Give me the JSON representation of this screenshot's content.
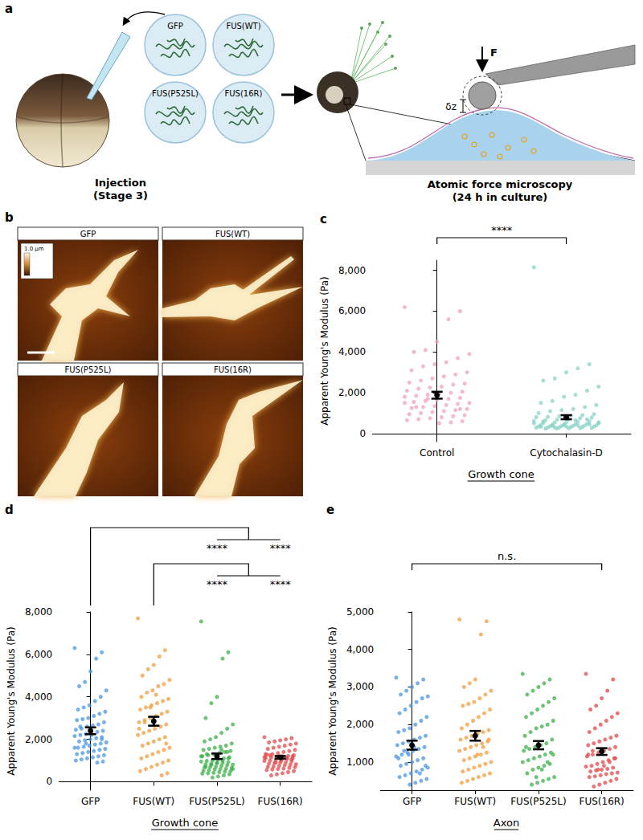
{
  "panel_labels": [
    "a",
    "b",
    "c",
    "d",
    "e"
  ],
  "diagram": {
    "constructs": [
      "GFP",
      "FUS(WT)",
      "FUS(P525L)",
      "FUS(16R)"
    ],
    "force": "F",
    "indentation": "δz",
    "steps": [
      {
        "title": "Injection",
        "subtitle": "(Stage 3)"
      },
      {
        "title": "Atomic force microscopy",
        "subtitle": "(24 h in culture)"
      }
    ]
  },
  "images": {
    "titles": [
      "GFP",
      "FUS(WT)",
      "FUS(P525L)",
      "FUS(16R)"
    ],
    "color_scale_label": "1.0 µm"
  },
  "chart_data": [
    {
      "type": "strip",
      "y_label": "Apparent Young's Modulus (Pa)",
      "x_label": "Growth cone",
      "categories": [
        "Control",
        "Cytochalasin-D"
      ],
      "colors": [
        "#f2a2bd",
        "#87d3c6"
      ],
      "values": [
        [
          6200,
          6000,
          5600,
          4500,
          4100,
          4000,
          3900,
          3700,
          3500,
          3400,
          3300,
          3100,
          3000,
          2900,
          2800,
          2700,
          2600,
          2500,
          2450,
          2400,
          2300,
          2250,
          2200,
          2100,
          2050,
          2000,
          1950,
          1900,
          1850,
          1800,
          1750,
          1700,
          1650,
          1600,
          1550,
          1500,
          1450,
          1400,
          1350,
          1300,
          1250,
          1200,
          1150,
          1100,
          1050,
          1000,
          950,
          900,
          850,
          800,
          750,
          700,
          650,
          600,
          550,
          500,
          1700,
          1300,
          1500,
          1200
        ],
        [
          8150,
          3400,
          3200,
          3000,
          2700,
          2600,
          2300,
          2100,
          1900,
          1800,
          1600,
          1500,
          1400,
          1300,
          1200,
          1150,
          1100,
          1000,
          950,
          900,
          880,
          850,
          820,
          800,
          780,
          750,
          700,
          680,
          650,
          620,
          600,
          580,
          560,
          540,
          520,
          500,
          480,
          460,
          450,
          440,
          420,
          400,
          390,
          380,
          370,
          360,
          350,
          340,
          330,
          320,
          310,
          300,
          290,
          280,
          270,
          260,
          250,
          240,
          500,
          450,
          400,
          350,
          300,
          600,
          550,
          700,
          650,
          420,
          380,
          330
        ]
      ],
      "means": [
        1880,
        800
      ],
      "errors": [
        170,
        100
      ],
      "ylim": [
        -400,
        8500
      ],
      "yticks": [
        0,
        2000,
        4000,
        6000,
        8000
      ],
      "grid": false,
      "significance": [
        {
          "from": "Control",
          "to": [
            "Cytochalasin-D"
          ],
          "label": "****"
        }
      ]
    },
    {
      "type": "strip",
      "y_label": "Apparent Young's Modulus (Pa)",
      "x_label": "Growth cone",
      "categories": [
        "GFP",
        "FUS(WT)",
        "FUS(P525L)",
        "FUS(16R)"
      ],
      "colors": [
        "#4b95e0",
        "#f39c3c",
        "#3cb04a",
        "#e34a4a"
      ],
      "values": [
        [
          6300,
          6100,
          5800,
          5200,
          4700,
          4500,
          4300,
          4000,
          3800,
          3600,
          3500,
          3400,
          3300,
          3200,
          3100,
          3000,
          2950,
          2900,
          2800,
          2700,
          2650,
          2600,
          2500,
          2450,
          2400,
          2350,
          2300,
          2250,
          2200,
          2150,
          2100,
          2050,
          2000,
          1950,
          1900,
          1850,
          1800,
          1750,
          1700,
          1650,
          1600,
          1550,
          1500,
          1450,
          1400,
          1350,
          1300,
          1250,
          1200,
          1150,
          1100,
          1050,
          1000,
          950,
          900,
          2200,
          1800,
          2600,
          1600,
          2000
        ],
        [
          7700,
          6200,
          5900,
          5500,
          5300,
          5000,
          4800,
          4600,
          4500,
          4300,
          4200,
          4000,
          3900,
          3800,
          3700,
          3600,
          3500,
          3400,
          3300,
          3200,
          3100,
          3000,
          2900,
          2800,
          2700,
          2600,
          2500,
          2400,
          2300,
          2200,
          2100,
          2000,
          1900,
          1800,
          1700,
          1600,
          1500,
          1400,
          1300,
          1200,
          1100,
          1000,
          900,
          800,
          700,
          600,
          500,
          400,
          300,
          4100,
          3500,
          2800,
          2500,
          1800
        ],
        [
          7550,
          6100,
          5800,
          4000,
          3700,
          3000,
          2700,
          2500,
          2300,
          2100,
          2000,
          1900,
          1800,
          1700,
          1650,
          1600,
          1550,
          1500,
          1450,
          1400,
          1350,
          1300,
          1250,
          1200,
          1150,
          1100,
          1050,
          1000,
          980,
          950,
          920,
          900,
          880,
          850,
          820,
          800,
          780,
          750,
          720,
          700,
          680,
          650,
          620,
          600,
          580,
          550,
          520,
          500,
          480,
          450,
          420,
          400,
          380,
          350,
          300,
          250,
          200,
          1300,
          1200,
          1100,
          1000,
          900,
          800,
          700,
          600,
          1400,
          1500
        ],
        [
          2100,
          2050,
          2000,
          1950,
          1900,
          1850,
          1800,
          1750,
          1700,
          1650,
          1600,
          1550,
          1500,
          1450,
          1400,
          1350,
          1300,
          1280,
          1250,
          1220,
          1200,
          1180,
          1150,
          1120,
          1100,
          1080,
          1050,
          1020,
          1000,
          980,
          950,
          920,
          900,
          880,
          850,
          820,
          800,
          780,
          750,
          720,
          700,
          680,
          650,
          620,
          600,
          580,
          550,
          500,
          450,
          400,
          350,
          300,
          1300,
          1200,
          1100,
          1000,
          900,
          1250,
          1150,
          1050
        ]
      ],
      "means": [
        2400,
        2850,
        1200,
        1150
      ],
      "errors": [
        160,
        210,
        130,
        60
      ],
      "ylim": [
        -400,
        8000
      ],
      "yticks": [
        0,
        2000,
        4000,
        6000,
        8000
      ],
      "grid": false,
      "significance": [
        {
          "from": "GFP",
          "to": [
            "FUS(P525L)",
            "FUS(16R)"
          ],
          "label": "****"
        },
        {
          "from": "FUS(WT)",
          "to": [
            "FUS(P525L)",
            "FUS(16R)"
          ],
          "label": "****"
        }
      ]
    },
    {
      "type": "strip",
      "y_label": "Apparent Young's Modulus (Pa)",
      "x_label": "Axon",
      "categories": [
        "GFP",
        "FUS(WT)",
        "FUS(P525L)",
        "FUS(16R)"
      ],
      "colors": [
        "#4b95e0",
        "#f39c3c",
        "#3cb04a",
        "#e34a4a"
      ],
      "values": [
        [
          3250,
          3200,
          3100,
          3000,
          2900,
          2800,
          2750,
          2700,
          2600,
          2500,
          2400,
          2300,
          2200,
          2100,
          2000,
          1900,
          1850,
          1800,
          1700,
          1650,
          1600,
          1550,
          1500,
          1450,
          1400,
          1350,
          1300,
          1250,
          1200,
          1150,
          1100,
          1050,
          1000,
          950,
          900,
          850,
          800,
          750,
          700,
          650,
          600,
          550,
          500,
          450,
          400,
          1300,
          1100,
          900,
          700,
          1400,
          1200
        ],
        [
          4800,
          4750,
          4400,
          3200,
          3100,
          3000,
          2900,
          2800,
          2700,
          2600,
          2550,
          2500,
          2400,
          2300,
          2200,
          2100,
          2000,
          1900,
          1850,
          1800,
          1750,
          1700,
          1650,
          1600,
          1550,
          1500,
          1450,
          1400,
          1350,
          1300,
          1250,
          1200,
          1150,
          1100,
          1050,
          1000,
          950,
          900,
          850,
          800,
          750,
          700,
          650,
          600,
          550,
          500,
          450,
          1600,
          1400,
          1200
        ],
        [
          3350,
          3200,
          3100,
          3000,
          2900,
          2800,
          2700,
          2600,
          2500,
          2400,
          2300,
          2200,
          2100,
          2000,
          1950,
          1900,
          1800,
          1700,
          1600,
          1500,
          1450,
          1400,
          1350,
          1300,
          1250,
          1200,
          1150,
          1100,
          1050,
          1000,
          950,
          900,
          850,
          800,
          700,
          600,
          550,
          500,
          450,
          400,
          1400,
          1200,
          1000,
          800,
          600
        ],
        [
          3350,
          3200,
          2900,
          2700,
          2500,
          2400,
          2300,
          2200,
          2100,
          2000,
          1900,
          1800,
          1700,
          1650,
          1600,
          1550,
          1500,
          1450,
          1400,
          1350,
          1300,
          1250,
          1200,
          1150,
          1100,
          1050,
          1000,
          950,
          900,
          880,
          850,
          820,
          800,
          780,
          750,
          720,
          700,
          680,
          650,
          620,
          600,
          550,
          500,
          450,
          400,
          350,
          1200,
          1100,
          1000,
          900,
          800,
          1300
        ]
      ],
      "means": [
        1450,
        1700,
        1450,
        1280
      ],
      "errors": [
        120,
        130,
        110,
        90
      ],
      "ylim": [
        250,
        5000
      ],
      "yticks": [
        1000,
        2000,
        3000,
        4000,
        5000
      ],
      "grid": false,
      "significance": [
        {
          "from": "GFP",
          "to": [
            "FUS(16R)"
          ],
          "label": "n.s."
        }
      ]
    }
  ]
}
